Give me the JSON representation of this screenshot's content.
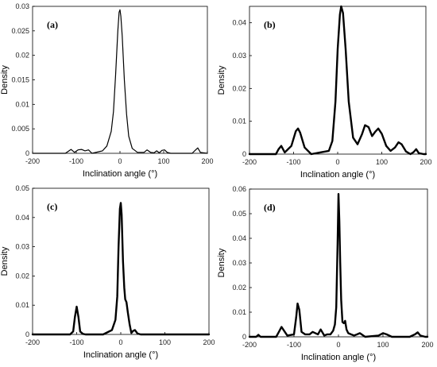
{
  "chart_data": [
    {
      "type": "line",
      "panel_label": "(a)",
      "xlabel": "Inclination angle (°)",
      "ylabel": "Density",
      "xlim": [
        -200,
        200
      ],
      "ylim": [
        0,
        0.03
      ],
      "xticks": [
        -200,
        -100,
        0,
        100,
        200
      ],
      "yticks": [
        0,
        0.005,
        0.01,
        0.015,
        0.02,
        0.025,
        0.03
      ],
      "ytick_labels": [
        "0",
        "0.005",
        "0.01",
        "0.015",
        "0.02",
        "0.025",
        "0.03"
      ],
      "grid": false,
      "series": [
        {
          "x": [
            -200,
            -125,
            -112,
            -104,
            -96,
            -88,
            -80,
            -72,
            -64,
            -40,
            -30,
            -20,
            -15,
            -10,
            -5,
            -2,
            0,
            2,
            5,
            10,
            15,
            20,
            28,
            40,
            55,
            62,
            70,
            78,
            84,
            90,
            96,
            102,
            108,
            116,
            130,
            165,
            172,
            178,
            184,
            200
          ],
          "y": [
            0,
            0,
            0.0008,
            0.0002,
            0.0007,
            0.0008,
            0.0005,
            0.0007,
            0,
            0.0005,
            0.0015,
            0.0045,
            0.0085,
            0.016,
            0.025,
            0.0288,
            0.0293,
            0.028,
            0.024,
            0.015,
            0.008,
            0.0035,
            0.001,
            0.0002,
            0.0002,
            0.0007,
            0.0002,
            0.0001,
            0.0005,
            0.0001,
            0.0006,
            0.0007,
            0.0002,
            0,
            0,
            0,
            0.0006,
            0.0011,
            0.0002,
            0
          ]
        }
      ]
    },
    {
      "type": "line",
      "panel_label": "(b)",
      "xlabel": "Inclination angle (°)",
      "ylabel": "Density",
      "xlim": [
        -200,
        200
      ],
      "ylim": [
        0,
        0.045
      ],
      "xticks": [
        -200,
        -100,
        0,
        100,
        200
      ],
      "yticks": [
        0,
        0.01,
        0.02,
        0.03,
        0.04
      ],
      "ytick_labels": [
        "0",
        "0.01",
        "0.02",
        "0.03",
        "0.04"
      ],
      "grid": false,
      "series": [
        {
          "x": [
            -200,
            -140,
            -134,
            -128,
            -120,
            -105,
            -95,
            -90,
            -85,
            -75,
            -60,
            -40,
            -20,
            -12,
            -5,
            0,
            5,
            8,
            12,
            18,
            25,
            35,
            45,
            55,
            62,
            70,
            78,
            85,
            92,
            100,
            110,
            120,
            130,
            138,
            145,
            155,
            165,
            172,
            178,
            184,
            195,
            200
          ],
          "y": [
            0,
            0,
            0.0015,
            0.0025,
            0.0005,
            0.0025,
            0.007,
            0.0078,
            0.0065,
            0.002,
            0,
            0.0005,
            0.001,
            0.004,
            0.016,
            0.032,
            0.0425,
            0.045,
            0.043,
            0.032,
            0.016,
            0.005,
            0.003,
            0.006,
            0.0088,
            0.0082,
            0.0055,
            0.0068,
            0.0078,
            0.0062,
            0.0025,
            0.001,
            0.002,
            0.0036,
            0.003,
            0.0008,
            0,
            0.0006,
            0.0015,
            0.0003,
            0,
            0
          ]
        }
      ]
    },
    {
      "type": "line",
      "panel_label": "(c)",
      "xlabel": "Inclination angle (°)",
      "ylabel": "Density",
      "xlim": [
        -200,
        200
      ],
      "ylim": [
        0,
        0.05
      ],
      "xticks": [
        -200,
        -100,
        0,
        100,
        200
      ],
      "yticks": [
        0,
        0.01,
        0.02,
        0.03,
        0.04,
        0.05
      ],
      "ytick_labels": [
        "0",
        "0.01",
        "0.02",
        "0.03",
        "0.04",
        "0.05"
      ],
      "grid": false,
      "series": [
        {
          "x": [
            -200,
            -115,
            -108,
            -104,
            -100,
            -96,
            -92,
            -86,
            -80,
            -60,
            -40,
            -20,
            -12,
            -8,
            -5,
            -2,
            0,
            2,
            5,
            8,
            10,
            13,
            16,
            20,
            24,
            28,
            32,
            38,
            45,
            60,
            200
          ],
          "y": [
            0,
            0,
            0.001,
            0.006,
            0.0095,
            0.006,
            0.001,
            0.0002,
            0,
            0,
            0,
            0.0015,
            0.005,
            0.013,
            0.03,
            0.043,
            0.045,
            0.041,
            0.025,
            0.016,
            0.012,
            0.011,
            0.0075,
            0.0035,
            0.0005,
            0.0012,
            0.0015,
            0.0003,
            0,
            0,
            0
          ]
        }
      ]
    },
    {
      "type": "line",
      "panel_label": "(d)",
      "xlabel": "Inclination angle (°)",
      "ylabel": "Density",
      "xlim": [
        -200,
        200
      ],
      "ylim": [
        0,
        0.06
      ],
      "xticks": [
        -200,
        -100,
        0,
        100,
        200
      ],
      "yticks": [
        0,
        0.01,
        0.02,
        0.03,
        0.04,
        0.05,
        0.06
      ],
      "ytick_labels": [
        "0",
        "0.01",
        "0.02",
        "0.03",
        "0.04",
        "0.05",
        "0.06"
      ],
      "grid": false,
      "series": [
        {
          "x": [
            -200,
            -185,
            -180,
            -175,
            -160,
            -140,
            -134,
            -128,
            -115,
            -100,
            -95,
            -92,
            -88,
            -83,
            -75,
            -65,
            -58,
            -52,
            -46,
            -40,
            -32,
            -25,
            -18,
            -12,
            -8,
            -5,
            -2,
            0,
            2,
            4,
            6,
            9,
            12,
            15,
            18,
            22,
            28,
            35,
            42,
            48,
            60,
            90,
            100,
            108,
            120,
            160,
            172,
            178,
            184,
            195,
            200
          ],
          "y": [
            0,
            0,
            0.0008,
            0,
            0,
            0,
            0.002,
            0.004,
            0.0005,
            0.001,
            0.008,
            0.0135,
            0.011,
            0.002,
            0.001,
            0.001,
            0.002,
            0.0015,
            0.001,
            0.003,
            0.0005,
            0.001,
            0.001,
            0.0025,
            0.005,
            0.012,
            0.038,
            0.058,
            0.047,
            0.03,
            0.015,
            0.006,
            0.0055,
            0.0065,
            0.003,
            0.0015,
            0.001,
            0.0005,
            0.001,
            0.0015,
            0,
            0.0005,
            0.0015,
            0.001,
            0,
            0,
            0.001,
            0.0018,
            0.0005,
            0,
            0
          ]
        }
      ]
    }
  ]
}
